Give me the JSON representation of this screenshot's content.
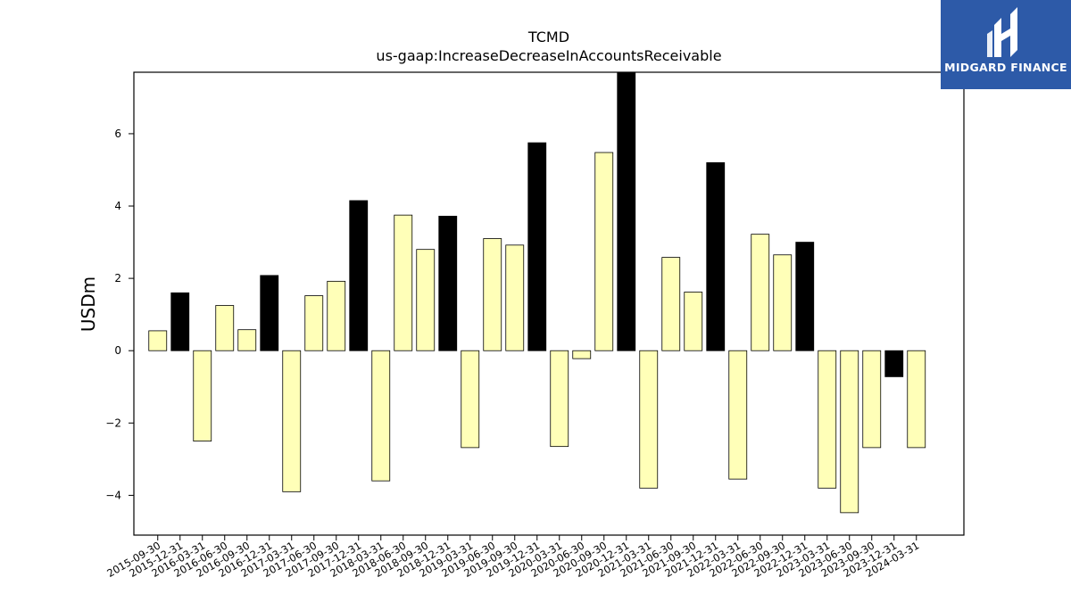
{
  "chart_data": {
    "type": "bar",
    "title": "TCMD",
    "subtitle": "us-gaap:IncreaseDecreaseInAccountsReceivable",
    "xlabel": "",
    "ylabel": "USDm",
    "ylim": [
      -5.1,
      7.7
    ],
    "yticks": [
      -4,
      -2,
      0,
      2,
      4,
      6
    ],
    "ytick_labels": [
      "−4",
      "−2",
      "0",
      "2",
      "4",
      "6"
    ],
    "categories": [
      "2015-09-30",
      "2015-12-31",
      "2016-03-31",
      "2016-06-30",
      "2016-09-30",
      "2016-12-31",
      "2017-03-31",
      "2017-06-30",
      "2017-09-30",
      "2017-12-31",
      "2018-03-31",
      "2018-06-30",
      "2018-09-30",
      "2018-12-31",
      "2019-03-31",
      "2019-06-30",
      "2019-09-30",
      "2019-12-31",
      "2020-03-31",
      "2020-06-30",
      "2020-09-30",
      "2020-12-31",
      "2021-03-31",
      "2021-06-30",
      "2021-09-30",
      "2021-12-31",
      "2022-03-31",
      "2022-06-30",
      "2022-09-30",
      "2022-12-31",
      "2023-03-31",
      "2023-06-30",
      "2023-09-30",
      "2023-12-31",
      "2024-03-31"
    ],
    "values": [
      0.55,
      1.6,
      -2.5,
      1.25,
      0.58,
      2.08,
      -3.9,
      1.52,
      1.92,
      4.15,
      -3.6,
      3.75,
      2.8,
      3.72,
      -2.68,
      3.1,
      2.92,
      5.75,
      -2.65,
      -0.22,
      5.48,
      7.7,
      -3.8,
      2.58,
      1.62,
      5.2,
      -3.55,
      3.22,
      2.65,
      3.0,
      -3.8,
      -4.48,
      -2.68,
      -0.72,
      -2.68
    ],
    "q4_color": "#000000",
    "bar_color": "#ffffb8",
    "edge_color": "#000000",
    "grid": false
  },
  "logo": {
    "text": "MIDGARD FINANCE",
    "background": "#2d5aa8"
  }
}
